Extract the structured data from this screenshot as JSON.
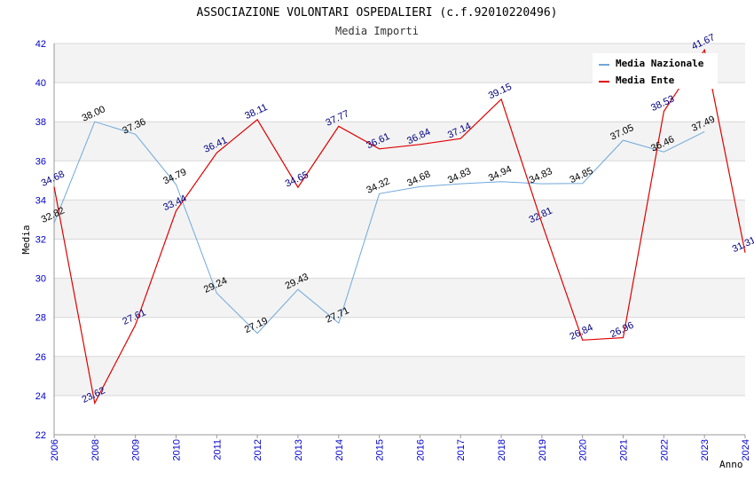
{
  "chart_data": {
    "type": "line",
    "title": "ASSOCIAZIONE VOLONTARI OSPEDALIERI (c.f.92010220496)",
    "subtitle": "Media Importi",
    "xlabel": "Anno",
    "ylabel": "Media",
    "ylim": [
      22,
      42
    ],
    "yticks": [
      "22",
      "24",
      "26",
      "28",
      "30",
      "32",
      "34",
      "36",
      "38",
      "40",
      "42"
    ],
    "categories": [
      "2006",
      "2008",
      "2009",
      "2010",
      "2011",
      "2012",
      "2013",
      "2014",
      "2015",
      "2016",
      "2017",
      "2018",
      "2019",
      "2020",
      "2021",
      "2022",
      "2023",
      "2024"
    ],
    "legend_position": "top-right",
    "series": [
      {
        "name": "Media Nazionale",
        "color": "#6fa8dc",
        "values": [
          32.82,
          38.0,
          37.36,
          34.79,
          29.24,
          27.19,
          29.43,
          27.71,
          34.32,
          34.68,
          34.83,
          34.94,
          34.83,
          34.85,
          37.05,
          36.46,
          37.49,
          null
        ],
        "labels": [
          "32.82",
          "38.00",
          "37.36",
          "34.79",
          "29.24",
          "27.19",
          "29.43",
          "27.71",
          "34.32",
          "34.68",
          "34.83",
          "34.94",
          "34.83",
          "34.85",
          "37.05",
          "36.46",
          "37.49",
          ""
        ]
      },
      {
        "name": "Media Ente",
        "color": "#e00000",
        "values": [
          34.68,
          23.62,
          27.61,
          33.44,
          36.41,
          38.11,
          34.65,
          37.77,
          36.61,
          36.84,
          37.14,
          39.15,
          32.81,
          26.84,
          26.96,
          38.53,
          41.67,
          31.31
        ],
        "labels": [
          "34.68",
          "23.62",
          "27.61",
          "33.44",
          "36.41",
          "38.11",
          "34.65",
          "37.77",
          "36.61",
          "36.84",
          "37.14",
          "39.15",
          "32.81",
          "26.84",
          "26.96",
          "38.53",
          "41.67",
          "31.31"
        ]
      }
    ]
  }
}
